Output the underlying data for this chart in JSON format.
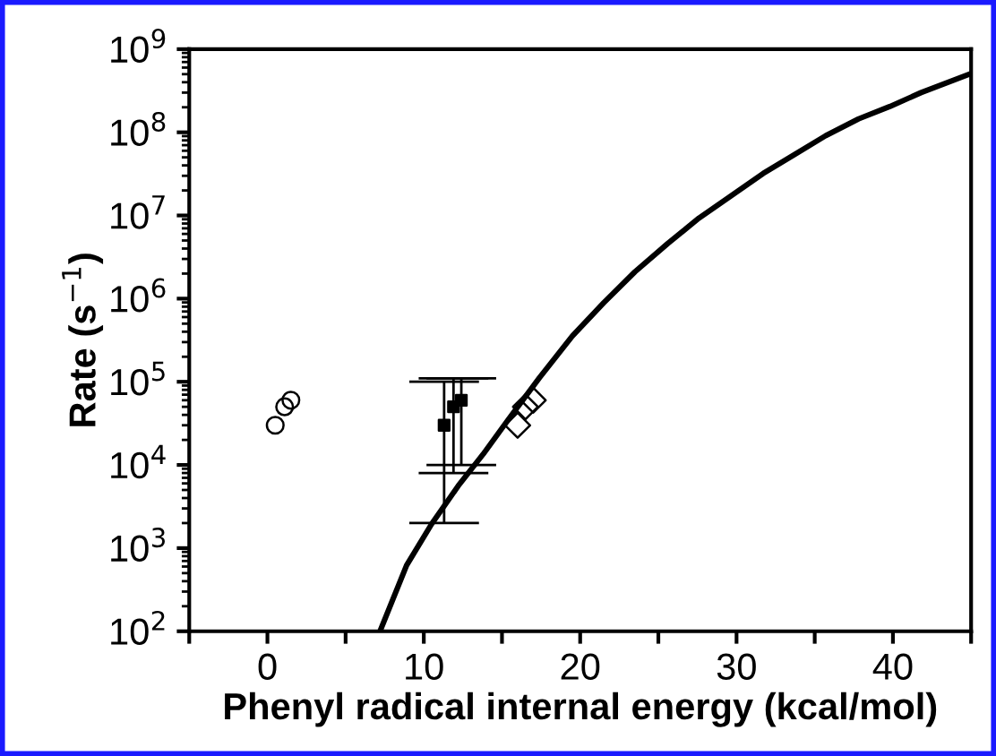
{
  "chart_data": {
    "type": "scatter",
    "xlabel": "Phenyl radical internal energy (kcal/mol)",
    "ylabel": "Rate (s$^{−1}$)",
    "log": "y",
    "grid": false,
    "legend": false,
    "xlim": [
      -5,
      45
    ],
    "ylim": [
      100,
      1000000000
    ],
    "xticks": [
      {
        "value": -5,
        "label": null
      },
      0,
      {
        "value": 5,
        "label": null
      },
      10,
      {
        "value": 15,
        "label": null
      },
      20,
      {
        "value": 25,
        "label": null
      },
      30,
      {
        "value": 35,
        "label": null
      },
      40,
      {
        "value": 45,
        "label": null
      }
    ],
    "yticks": [
      {
        "value": 100,
        "label": "10$^{2}$"
      },
      {
        "value": 1000,
        "label": "10$^{3}$"
      },
      {
        "value": 10000,
        "label": "10$^{4}$"
      },
      {
        "value": 100000,
        "label": "10$^{5}$"
      },
      {
        "value": 1000000,
        "label": "10$^{6}$"
      },
      {
        "value": 10000000,
        "label": "10$^{7}$"
      },
      {
        "value": 100000000,
        "label": "10$^{8}$"
      },
      {
        "value": 1000000000,
        "label": "10$^{9}$"
      }
    ],
    "series": [
      {
        "type": "line",
        "color": "#000000",
        "marker": "none",
        "line_style": "solid",
        "x": [
          7.2,
          8.9,
          10.5,
          12.2,
          13.8,
          15.4,
          17.4,
          19.5,
          21.5,
          23.5,
          25.6,
          27.6,
          29.6,
          31.7,
          33.7,
          35.7,
          37.8,
          39.8,
          41.8,
          45
        ],
        "values": [
          100,
          620,
          1950,
          5600,
          13500,
          35000,
          112000,
          355000,
          890000,
          2100000,
          4600000,
          9300000,
          17000000,
          32000000,
          54000000,
          91000000,
          145000000,
          204000000,
          300000000,
          510000000
        ]
      },
      {
        "color": "#000000",
        "marker": "circle",
        "x": [
          0.5,
          1.1,
          1.5
        ],
        "values": [
          30000,
          50000,
          60000
        ]
      },
      {
        "color": "#000000",
        "marker": "square",
        "x": [
          11.3,
          11.9,
          12.4
        ],
        "values": [
          30000,
          50000,
          60000
        ],
        "errors": [
          [
            2000,
            100000
          ],
          [
            8000,
            110000
          ],
          [
            10000,
            110000
          ]
        ]
      },
      {
        "color": "#000000",
        "marker": "diamond",
        "x": [
          16,
          16.5,
          17
        ],
        "values": [
          30000,
          50000,
          60000
        ]
      }
    ]
  }
}
